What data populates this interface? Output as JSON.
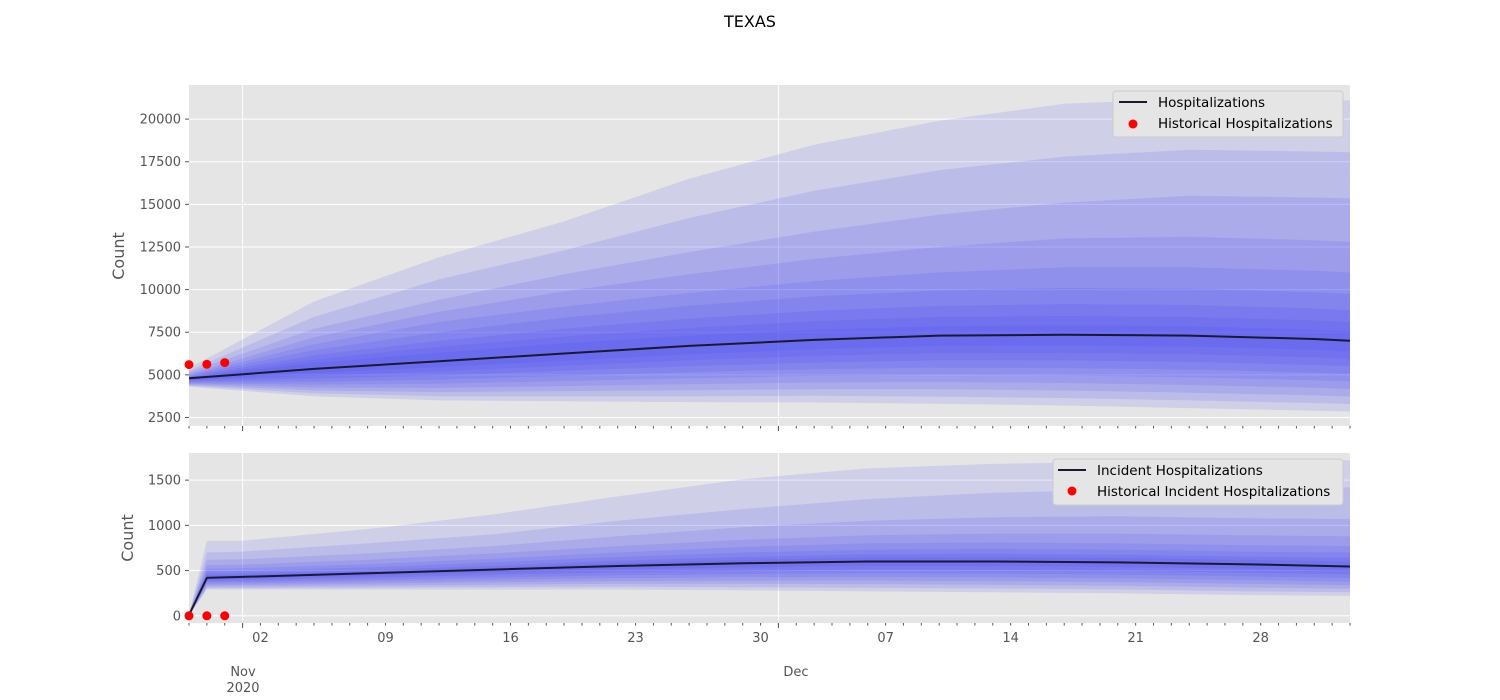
{
  "figure_title": "TEXAS",
  "colors": {
    "panel_bg": "#e5e5e5",
    "grid": "#ffffff",
    "band": "#3b3bf5",
    "median": "#1a1a2e",
    "historical": "#ff0000",
    "legend_bg": "#e5e5e5"
  },
  "x_axis": {
    "day_labels": [
      "02",
      "09",
      "16",
      "23",
      "30",
      "07",
      "14",
      "21",
      "28"
    ],
    "month_labels": [
      {
        "month": "Nov",
        "year": "2020"
      },
      {
        "month": "Dec",
        "year": ""
      }
    ]
  },
  "chart_data": [
    {
      "type": "area",
      "name": "hospitalizations",
      "ylabel": "Count",
      "yticks": [
        2500,
        5000,
        7500,
        10000,
        12500,
        15000,
        17500,
        20000
      ],
      "ylim": [
        2000,
        22000
      ],
      "xlim": [
        "2020-10-29",
        "2021-01-02"
      ],
      "grid": true,
      "legend_position": "upper-right",
      "legend": [
        "Hospitalizations",
        "Historical Hospitalizations"
      ],
      "x": [
        "2020-10-29",
        "2020-11-05",
        "2020-11-12",
        "2020-11-19",
        "2020-11-26",
        "2020-12-03",
        "2020-12-10",
        "2020-12-17",
        "2020-12-24",
        "2020-12-31",
        "2021-01-02"
      ],
      "median": [
        4800,
        5350,
        5800,
        6250,
        6700,
        7050,
        7300,
        7350,
        7300,
        7100,
        7000
      ],
      "bands": [
        {
          "upper": [
            5400,
            9300,
            11900,
            14000,
            16500,
            18500,
            19900,
            20900,
            21200,
            21000,
            21100
          ],
          "lower": [
            4300,
            3750,
            3500,
            3450,
            3400,
            3380,
            3300,
            3200,
            3050,
            2900,
            2850
          ]
        },
        {
          "upper": [
            5250,
            8400,
            10600,
            12300,
            14200,
            15800,
            17000,
            17800,
            18200,
            18100,
            18050
          ]
        },
        {
          "upper": [
            5150,
            7700,
            9400,
            10900,
            12200,
            13400,
            14400,
            15100,
            15500,
            15400,
            15350
          ]
        },
        {
          "upper": [
            5050,
            7200,
            8700,
            9900,
            10900,
            11800,
            12500,
            13000,
            13100,
            12900,
            12800
          ]
        },
        {
          "upper": [
            5000,
            6800,
            8100,
            9000,
            9800,
            10500,
            11000,
            11300,
            11300,
            11100,
            11000
          ]
        },
        {
          "upper": [
            4950,
            6450,
            7500,
            8350,
            9050,
            9600,
            9950,
            10100,
            10050,
            9850,
            9750
          ]
        },
        {
          "upper": [
            4900,
            6150,
            7000,
            7700,
            8300,
            8750,
            9050,
            9150,
            9100,
            8900,
            8800
          ]
        },
        {
          "upper": [
            4870,
            5900,
            6650,
            7250,
            7750,
            8150,
            8400,
            8450,
            8400,
            8200,
            8100
          ]
        },
        {
          "upper": [
            4840,
            5700,
            6300,
            6850,
            7300,
            7650,
            7850,
            7900,
            7850,
            7650,
            7550
          ]
        }
      ],
      "historical": {
        "x": [
          "2020-10-29",
          "2020-10-30",
          "2020-10-31"
        ],
        "y": [
          5600,
          5620,
          5720
        ]
      }
    },
    {
      "type": "area",
      "name": "incident_hospitalizations",
      "ylabel": "Count",
      "yticks": [
        0,
        500,
        1000,
        1500
      ],
      "ylim": [
        -80,
        1800
      ],
      "xlim": [
        "2020-10-29",
        "2021-01-02"
      ],
      "grid": true,
      "legend_position": "upper-right",
      "legend": [
        "Incident Hospitalizations",
        "Historical Incident Hospitalizations"
      ],
      "x": [
        "2020-10-29",
        "2020-10-30",
        "2020-11-01",
        "2020-11-08",
        "2020-11-15",
        "2020-11-22",
        "2020-11-29",
        "2020-12-06",
        "2020-12-13",
        "2020-12-20",
        "2020-12-27",
        "2021-01-02"
      ],
      "median": [
        10,
        420,
        430,
        470,
        510,
        550,
        580,
        600,
        600,
        590,
        570,
        545
      ],
      "bands": [
        {
          "upper": [
            20,
            830,
            830,
            960,
            1120,
            1320,
            1510,
            1630,
            1680,
            1700,
            1700,
            1720
          ],
          "lower": [
            0,
            290,
            290,
            290,
            290,
            290,
            280,
            270,
            260,
            250,
            230,
            220
          ]
        },
        {
          "upper": [
            18,
            700,
            710,
            800,
            900,
            1050,
            1180,
            1290,
            1360,
            1390,
            1400,
            1420
          ]
        },
        {
          "upper": [
            16,
            620,
            625,
            690,
            770,
            880,
            980,
            1050,
            1090,
            1100,
            1080,
            1070
          ]
        },
        {
          "upper": [
            14,
            560,
            565,
            620,
            690,
            770,
            840,
            890,
            910,
            910,
            890,
            880
          ]
        },
        {
          "upper": [
            13,
            520,
            525,
            570,
            630,
            700,
            760,
            800,
            810,
            800,
            780,
            770
          ]
        },
        {
          "upper": [
            12,
            490,
            495,
            535,
            590,
            650,
            700,
            730,
            740,
            730,
            710,
            700
          ]
        },
        {
          "upper": [
            11,
            465,
            470,
            505,
            555,
            610,
            650,
            680,
            685,
            675,
            655,
            640
          ]
        },
        {
          "upper": [
            11,
            445,
            450,
            485,
            530,
            580,
            620,
            645,
            650,
            640,
            620,
            600
          ]
        }
      ],
      "historical": {
        "x": [
          "2020-10-29",
          "2020-10-30",
          "2020-10-31"
        ],
        "y": [
          0,
          0,
          0
        ]
      }
    }
  ]
}
